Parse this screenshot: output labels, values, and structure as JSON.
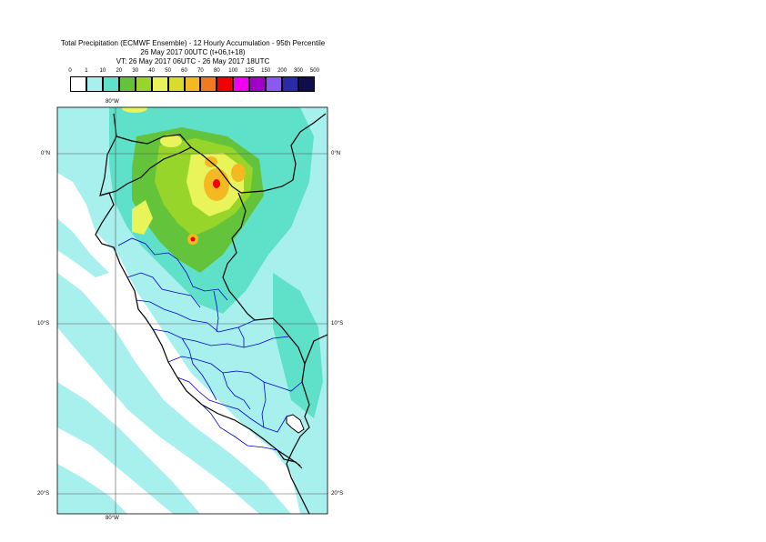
{
  "title": {
    "line1": "Total Precipitation (ECMWF Ensemble) - 12 Hourly Accumulation - 95th Percentile",
    "line2": "26 May 2017 00UTC (t+06,t+18)",
    "line3": "VT: 26 May 2017 06UTC - 26 May 2017 18UTC"
  },
  "legend": {
    "thresholds": [
      "0",
      "1",
      "10",
      "20",
      "30",
      "40",
      "50",
      "60",
      "70",
      "80",
      "100",
      "125",
      "150",
      "200",
      "300",
      "500"
    ],
    "colors": [
      "#ffffff",
      "#a8f0ee",
      "#5fe0c8",
      "#63c43c",
      "#98d52a",
      "#e8f45a",
      "#d8dc2c",
      "#f4b822",
      "#f07a1e",
      "#f00000",
      "#f000f0",
      "#a000c8",
      "#8a5af0",
      "#2a2aa8",
      "#0e0e4e"
    ]
  },
  "map": {
    "lon_labels": [
      "80°W",
      "80°W"
    ],
    "lat_labels": [
      "0°N",
      "0°N",
      "10°S",
      "10°S",
      "20°S",
      "20°S"
    ],
    "colors": {
      "ocean": "#ffffff",
      "light": "#a8f0ee",
      "medium": "#5fe0c8",
      "green": "#63c43c",
      "yellowgreen": "#98d52a",
      "yellow": "#e8f45a",
      "orange": "#f4b822",
      "red": "#f00000",
      "border_country": "#000000",
      "border_region": "#0000cc"
    }
  }
}
